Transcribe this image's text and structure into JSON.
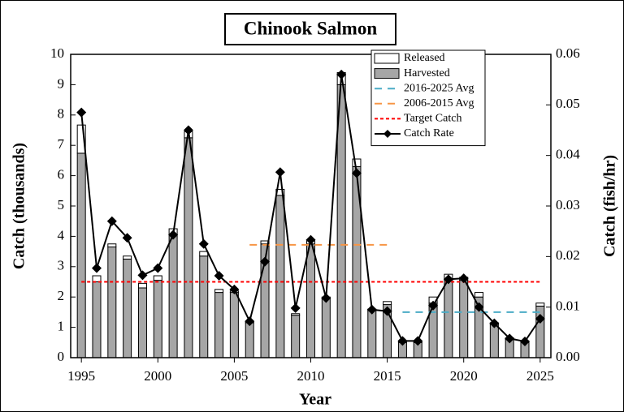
{
  "chart_data": {
    "type": "bar",
    "title": "Chinook Salmon",
    "xlabel": "Year",
    "ylabel": "Catch (thousands)",
    "y2label": "Catch (fish/hr)",
    "x": [
      1995,
      1996,
      1997,
      1998,
      1999,
      2000,
      2001,
      2002,
      2003,
      2004,
      2005,
      2006,
      2007,
      2008,
      2009,
      2010,
      2011,
      2012,
      2013,
      2014,
      2015,
      2016,
      2017,
      2018,
      2019,
      2020,
      2021,
      2022,
      2023,
      2024,
      2025
    ],
    "series": [
      {
        "name": "Released",
        "type": "bar",
        "color": "#ffffff",
        "values": [
          0.93,
          0.2,
          0.1,
          0.1,
          0.15,
          0.15,
          0.2,
          0.2,
          0.15,
          0.1,
          0.05,
          0.05,
          0.1,
          0.2,
          0.05,
          0.1,
          0.05,
          0.4,
          0.25,
          0.05,
          0.1,
          0.05,
          0.05,
          0.2,
          0.15,
          0.1,
          0.15,
          0.05,
          0.05,
          0.05,
          0.1
        ]
      },
      {
        "name": "Harvested",
        "type": "bar",
        "color": "#a6a6a6",
        "values": [
          6.74,
          2.5,
          3.65,
          3.25,
          2.3,
          2.55,
          4.05,
          7.25,
          3.35,
          2.15,
          2.15,
          1.15,
          3.75,
          5.35,
          1.4,
          3.75,
          1.95,
          9.0,
          6.3,
          1.55,
          1.75,
          0.5,
          0.5,
          1.8,
          2.6,
          2.55,
          2.0,
          1.1,
          0.6,
          0.5,
          1.7
        ]
      },
      {
        "name": "Catch Rate",
        "type": "line",
        "axis": "y2",
        "color": "#000000",
        "values": [
          0.0485,
          0.0177,
          0.027,
          0.0237,
          0.0163,
          0.0177,
          0.0243,
          0.045,
          0.0225,
          0.0162,
          0.0135,
          0.0072,
          0.019,
          0.0367,
          0.0098,
          0.0233,
          0.0118,
          0.056,
          0.0365,
          0.0095,
          0.0092,
          0.0033,
          0.0033,
          0.0103,
          0.0155,
          0.0157,
          0.01,
          0.0068,
          0.0038,
          0.0032,
          0.0077
        ]
      }
    ],
    "reference_lines": [
      {
        "name": "2016-2025 Avg",
        "color": "#4bacc6",
        "value": 1.5,
        "x": [
          2016,
          2025
        ]
      },
      {
        "name": "2006-2015 Avg",
        "color": "#f79646",
        "value": 3.72,
        "x": [
          2006,
          2015.2
        ]
      },
      {
        "name": "Target Catch",
        "color": "#ff0000",
        "value": 2.5,
        "x": [
          1995,
          2025
        ]
      }
    ],
    "xlim": [
      1994.3,
      2025.7
    ],
    "xticks": [
      1995,
      2000,
      2005,
      2010,
      2015,
      2020,
      2025
    ],
    "ylim": [
      0,
      10
    ],
    "yticks": [
      0,
      1,
      2,
      3,
      4,
      5,
      6,
      7,
      8,
      9,
      10
    ],
    "y2lim": [
      0,
      0.06
    ],
    "y2ticks": [
      {
        "value": 0,
        "label": "0.00"
      },
      0.01,
      0.02,
      0.03,
      0.04,
      0.05,
      0.06
    ],
    "legend": "upper right",
    "grid": false
  }
}
